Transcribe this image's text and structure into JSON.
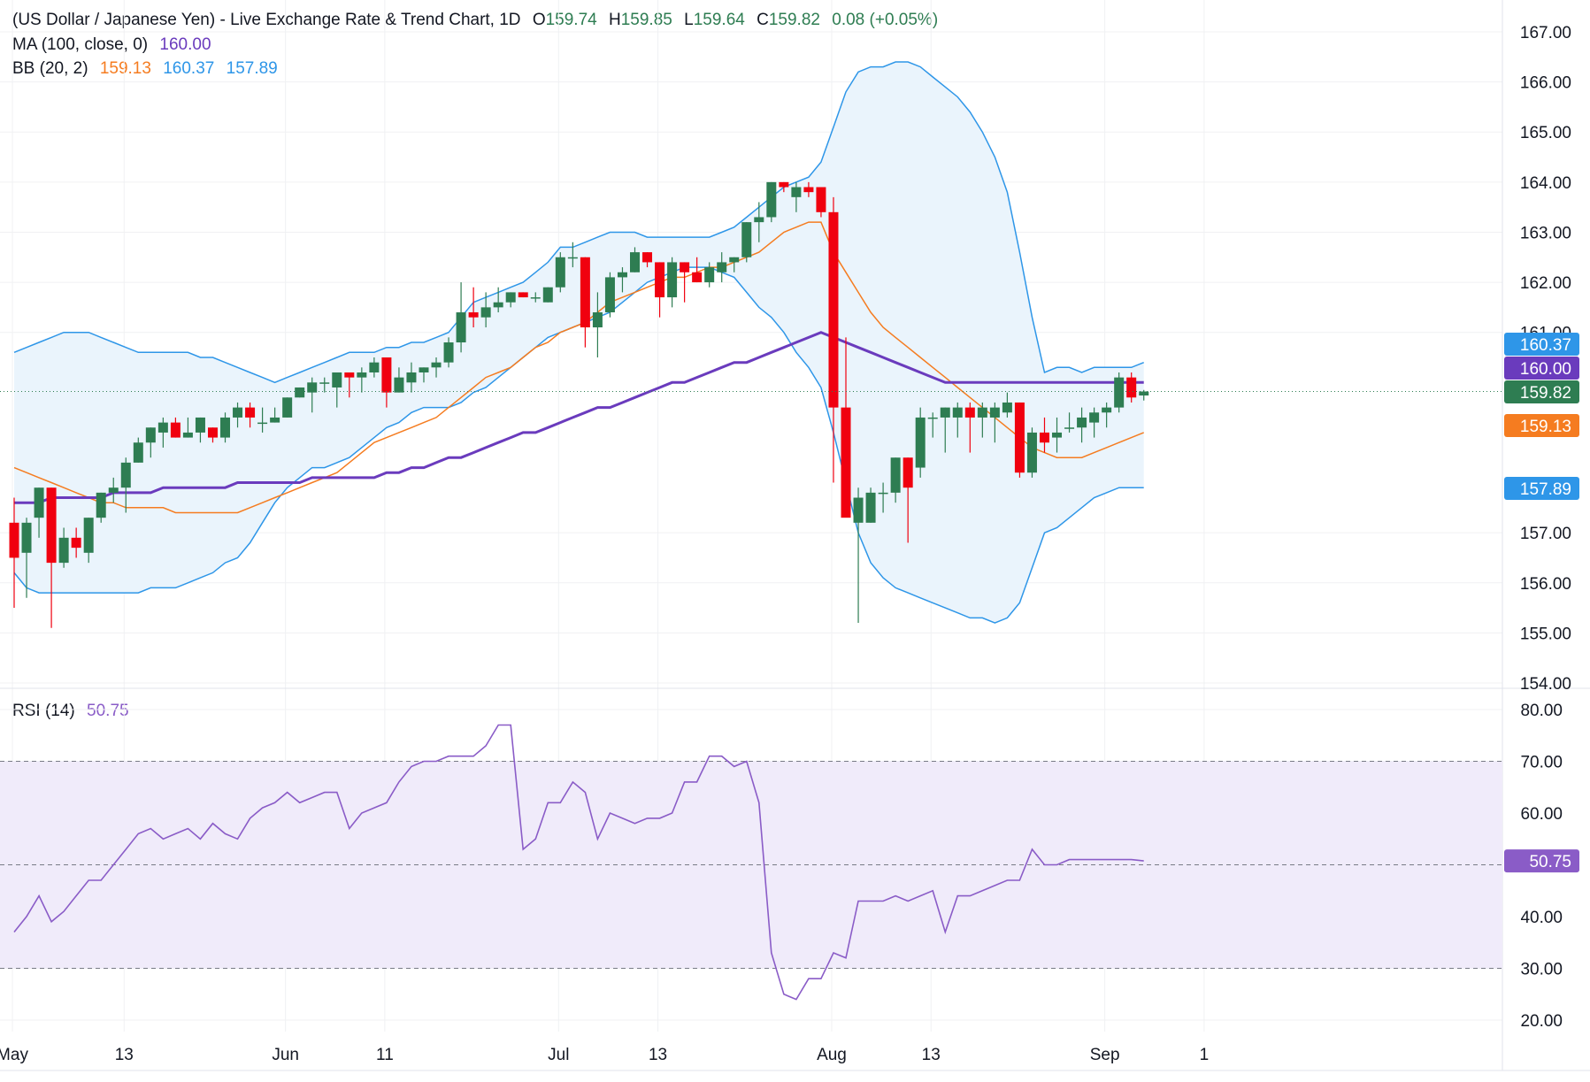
{
  "header": {
    "title": "(US Dollar / Japanese Yen) - Live Exchange Rate & Trend Chart, 1D",
    "open_label": "O",
    "open": "159.74",
    "high_label": "H",
    "high": "159.85",
    "low_label": "L",
    "low": "159.64",
    "close_label": "C",
    "close": "159.82",
    "change": "0.08 (+0.05%)"
  },
  "ma_legend": {
    "label": "MA (100, close, 0)",
    "value": "160.00"
  },
  "bb_legend": {
    "label": "BB (20, 2)",
    "basis": "159.13",
    "upper": "160.37",
    "lower": "157.89"
  },
  "rsi_legend": {
    "label": "RSI (14)",
    "value": "50.75"
  },
  "colors": {
    "up": "#2e7d52",
    "down": "#f0000f",
    "ma": "#6a3bbd",
    "bb_basis": "#f57c20",
    "bb_band": "#2e96e8",
    "bb_fill": "#eaf4fc",
    "rsi_line": "#8a5cc7",
    "rsi_fill": "#f0ebfa",
    "grid": "#f0f1f3",
    "text": "#131722"
  },
  "chart_data": [
    {
      "type": "candlestick",
      "symbol": "USD/JPY",
      "interval": "1D",
      "price_ticks": [
        "167.00",
        "166.00",
        "165.00",
        "164.00",
        "163.00",
        "162.00",
        "161.00",
        "157.00",
        "156.00",
        "155.00",
        "154.00"
      ],
      "ylim": [
        154.0,
        167.0
      ],
      "x_labels": [
        "May",
        "13",
        "Jun",
        "11",
        "Jul",
        "13",
        "Aug",
        "13",
        "Sep",
        "1"
      ],
      "x_label_index": [
        0,
        9,
        22,
        30,
        44,
        52,
        66,
        74,
        88,
        96
      ],
      "candles": [
        [
          157.2,
          157.7,
          155.5,
          156.5
        ],
        [
          156.6,
          157.3,
          155.7,
          157.2
        ],
        [
          157.3,
          157.9,
          156.9,
          157.9
        ],
        [
          157.9,
          157.9,
          155.1,
          156.4
        ],
        [
          156.4,
          157.1,
          156.3,
          156.9
        ],
        [
          156.9,
          157.1,
          156.5,
          156.7
        ],
        [
          156.6,
          157.3,
          156.4,
          157.3
        ],
        [
          157.3,
          157.8,
          157.2,
          157.8
        ],
        [
          157.8,
          158.1,
          157.6,
          157.9
        ],
        [
          157.9,
          158.5,
          157.4,
          158.4
        ],
        [
          158.4,
          158.9,
          158.4,
          158.8
        ],
        [
          158.8,
          159.1,
          158.5,
          159.1
        ],
        [
          159.0,
          159.3,
          158.7,
          159.2
        ],
        [
          159.2,
          159.3,
          158.9,
          158.9
        ],
        [
          158.9,
          159.3,
          158.9,
          159.0
        ],
        [
          159.0,
          159.3,
          158.8,
          159.3
        ],
        [
          159.1,
          159.1,
          158.8,
          158.9
        ],
        [
          158.9,
          159.4,
          158.8,
          159.3
        ],
        [
          159.3,
          159.6,
          159.1,
          159.5
        ],
        [
          159.5,
          159.6,
          159.1,
          159.3
        ],
        [
          159.2,
          159.5,
          159.0,
          159.2
        ],
        [
          159.2,
          159.5,
          159.2,
          159.3
        ],
        [
          159.3,
          159.7,
          159.3,
          159.7
        ],
        [
          159.7,
          159.9,
          159.7,
          159.9
        ],
        [
          159.8,
          160.1,
          159.4,
          160.0
        ],
        [
          160.0,
          160.1,
          159.8,
          160.0
        ],
        [
          159.9,
          160.2,
          159.5,
          160.2
        ],
        [
          160.2,
          160.2,
          159.7,
          160.1
        ],
        [
          160.1,
          160.3,
          159.8,
          160.2
        ],
        [
          160.2,
          160.5,
          160.1,
          160.4
        ],
        [
          160.5,
          160.5,
          159.5,
          159.8
        ],
        [
          159.8,
          160.3,
          159.8,
          160.1
        ],
        [
          160.0,
          160.4,
          159.8,
          160.2
        ],
        [
          160.2,
          160.3,
          160.0,
          160.3
        ],
        [
          160.3,
          160.5,
          160.1,
          160.4
        ],
        [
          160.4,
          160.9,
          160.3,
          160.8
        ],
        [
          160.8,
          162.0,
          160.6,
          161.4
        ],
        [
          161.4,
          161.9,
          161.1,
          161.3
        ],
        [
          161.3,
          161.8,
          161.1,
          161.5
        ],
        [
          161.5,
          161.9,
          161.4,
          161.6
        ],
        [
          161.6,
          161.8,
          161.5,
          161.8
        ],
        [
          161.8,
          161.8,
          161.7,
          161.7
        ],
        [
          161.7,
          161.8,
          161.6,
          161.7
        ],
        [
          161.6,
          161.9,
          161.6,
          161.9
        ],
        [
          161.9,
          162.6,
          161.8,
          162.5
        ],
        [
          162.5,
          162.8,
          162.3,
          162.5
        ],
        [
          162.5,
          162.5,
          160.7,
          161.1
        ],
        [
          161.1,
          161.8,
          160.5,
          161.4
        ],
        [
          161.4,
          162.2,
          161.3,
          162.1
        ],
        [
          162.1,
          162.3,
          161.8,
          162.2
        ],
        [
          162.2,
          162.7,
          162.2,
          162.6
        ],
        [
          162.6,
          162.6,
          162.3,
          162.4
        ],
        [
          162.4,
          162.4,
          161.3,
          161.7
        ],
        [
          161.7,
          162.5,
          161.5,
          162.4
        ],
        [
          162.4,
          162.4,
          161.6,
          162.2
        ],
        [
          162.2,
          162.5,
          162.0,
          162.0
        ],
        [
          162.0,
          162.4,
          161.9,
          162.3
        ],
        [
          162.2,
          162.6,
          162.0,
          162.4
        ],
        [
          162.4,
          162.5,
          162.2,
          162.5
        ],
        [
          162.5,
          163.2,
          162.4,
          163.2
        ],
        [
          163.2,
          163.6,
          162.8,
          163.3
        ],
        [
          163.3,
          164.0,
          163.2,
          164.0
        ],
        [
          164.0,
          164.0,
          163.8,
          163.9
        ],
        [
          163.7,
          164.0,
          163.4,
          163.9
        ],
        [
          163.9,
          164.0,
          163.7,
          163.8
        ],
        [
          163.9,
          163.9,
          163.3,
          163.4
        ],
        [
          163.4,
          163.7,
          158.0,
          159.5
        ],
        [
          159.5,
          160.9,
          157.4,
          157.3
        ],
        [
          157.2,
          157.9,
          155.2,
          157.7
        ],
        [
          157.2,
          157.9,
          157.2,
          157.8
        ],
        [
          157.8,
          158.0,
          157.4,
          157.8
        ],
        [
          157.8,
          158.5,
          157.6,
          158.5
        ],
        [
          158.5,
          158.5,
          156.8,
          157.9
        ],
        [
          158.3,
          159.5,
          158.1,
          159.3
        ],
        [
          159.3,
          159.4,
          158.9,
          159.3
        ],
        [
          159.3,
          159.5,
          158.6,
          159.5
        ],
        [
          159.3,
          159.6,
          158.9,
          159.5
        ],
        [
          159.5,
          159.6,
          158.6,
          159.3
        ],
        [
          159.3,
          159.6,
          158.9,
          159.5
        ],
        [
          159.3,
          159.6,
          158.8,
          159.5
        ],
        [
          159.4,
          159.8,
          159.3,
          159.6
        ],
        [
          159.6,
          159.6,
          158.1,
          158.2
        ],
        [
          158.2,
          159.1,
          158.1,
          159.0
        ],
        [
          159.0,
          159.3,
          158.6,
          158.8
        ],
        [
          158.9,
          159.3,
          158.6,
          159.0
        ],
        [
          159.1,
          159.4,
          159.0,
          159.1
        ],
        [
          159.1,
          159.5,
          158.8,
          159.3
        ],
        [
          159.2,
          159.5,
          158.9,
          159.4
        ],
        [
          159.4,
          159.6,
          159.1,
          159.5
        ],
        [
          159.5,
          160.2,
          159.4,
          160.1
        ],
        [
          160.1,
          160.2,
          159.6,
          159.7
        ],
        [
          159.74,
          159.85,
          159.64,
          159.82
        ]
      ],
      "ma100": [
        157.6,
        157.6,
        157.6,
        157.7,
        157.7,
        157.7,
        157.7,
        157.7,
        157.8,
        157.8,
        157.8,
        157.8,
        157.9,
        157.9,
        157.9,
        157.9,
        157.9,
        157.9,
        158.0,
        158.0,
        158.0,
        158.0,
        158.0,
        158.0,
        158.1,
        158.1,
        158.1,
        158.1,
        158.1,
        158.1,
        158.2,
        158.2,
        158.3,
        158.3,
        158.4,
        158.5,
        158.5,
        158.6,
        158.7,
        158.8,
        158.9,
        159.0,
        159.0,
        159.1,
        159.2,
        159.3,
        159.4,
        159.5,
        159.5,
        159.6,
        159.7,
        159.8,
        159.9,
        160.0,
        160.0,
        160.1,
        160.2,
        160.3,
        160.4,
        160.4,
        160.5,
        160.6,
        160.7,
        160.8,
        160.9,
        161.0,
        160.9,
        160.8,
        160.7,
        160.6,
        160.5,
        160.4,
        160.3,
        160.2,
        160.1,
        160.0,
        160.0,
        160.0,
        160.0,
        160.0,
        160.0,
        160.0,
        160.0,
        160.0,
        160.0,
        160.0,
        160.0,
        160.0,
        160.0,
        160.0,
        160.0,
        160.0
      ],
      "bb_basis": [
        158.3,
        158.2,
        158.1,
        158.0,
        157.9,
        157.8,
        157.7,
        157.6,
        157.6,
        157.5,
        157.5,
        157.5,
        157.5,
        157.4,
        157.4,
        157.4,
        157.4,
        157.4,
        157.4,
        157.5,
        157.6,
        157.7,
        157.8,
        157.9,
        158.0,
        158.1,
        158.2,
        158.4,
        158.6,
        158.8,
        158.9,
        159.0,
        159.1,
        159.2,
        159.3,
        159.5,
        159.7,
        159.9,
        160.1,
        160.2,
        160.3,
        160.5,
        160.7,
        160.8,
        161.0,
        161.1,
        161.2,
        161.4,
        161.6,
        161.7,
        161.8,
        161.9,
        162.0,
        162.1,
        162.1,
        162.2,
        162.3,
        162.3,
        162.4,
        162.5,
        162.6,
        162.8,
        163.0,
        163.1,
        163.2,
        163.2,
        162.6,
        162.2,
        161.8,
        161.4,
        161.1,
        160.9,
        160.7,
        160.5,
        160.3,
        160.1,
        159.9,
        159.7,
        159.5,
        159.3,
        159.1,
        158.9,
        158.7,
        158.6,
        158.5,
        158.5,
        158.5,
        158.6,
        158.7,
        158.8,
        158.9,
        159.0
      ],
      "bb_upper": [
        160.6,
        160.7,
        160.8,
        160.9,
        161.0,
        161.0,
        161.0,
        160.9,
        160.8,
        160.7,
        160.6,
        160.6,
        160.6,
        160.6,
        160.6,
        160.5,
        160.5,
        160.4,
        160.3,
        160.2,
        160.1,
        160.0,
        160.1,
        160.2,
        160.3,
        160.4,
        160.5,
        160.6,
        160.6,
        160.6,
        160.7,
        160.7,
        160.8,
        160.8,
        160.9,
        161.0,
        161.3,
        161.6,
        161.7,
        161.8,
        161.9,
        162.0,
        162.2,
        162.4,
        162.7,
        162.7,
        162.8,
        162.9,
        163.0,
        163.0,
        163.0,
        162.9,
        162.9,
        162.9,
        162.9,
        162.9,
        162.9,
        163.0,
        163.1,
        163.3,
        163.5,
        163.7,
        163.9,
        164.0,
        164.1,
        164.4,
        165.1,
        165.8,
        166.2,
        166.3,
        166.3,
        166.4,
        166.4,
        166.3,
        166.1,
        165.9,
        165.7,
        165.4,
        165.0,
        164.5,
        163.8,
        162.6,
        161.3,
        160.2,
        160.3,
        160.3,
        160.2,
        160.3,
        160.3,
        160.3,
        160.3,
        160.4
      ],
      "bb_lower": [
        156.2,
        155.9,
        155.8,
        155.8,
        155.8,
        155.8,
        155.8,
        155.8,
        155.8,
        155.8,
        155.8,
        155.9,
        155.9,
        155.9,
        156.0,
        156.1,
        156.2,
        156.4,
        156.5,
        156.8,
        157.2,
        157.6,
        157.9,
        158.1,
        158.3,
        158.3,
        158.4,
        158.5,
        158.7,
        158.9,
        159.1,
        159.2,
        159.4,
        159.5,
        159.5,
        159.5,
        159.6,
        159.8,
        159.9,
        160.1,
        160.3,
        160.5,
        160.7,
        160.9,
        161.0,
        161.1,
        161.2,
        161.3,
        161.4,
        161.6,
        161.8,
        162.0,
        162.1,
        162.2,
        162.3,
        162.3,
        162.3,
        162.2,
        162.1,
        161.8,
        161.5,
        161.3,
        161.0,
        160.6,
        160.3,
        159.9,
        159.0,
        158.0,
        157.0,
        156.4,
        156.1,
        155.9,
        155.8,
        155.7,
        155.6,
        155.5,
        155.4,
        155.3,
        155.3,
        155.2,
        155.3,
        155.6,
        156.3,
        157.0,
        157.1,
        157.3,
        157.5,
        157.7,
        157.8,
        157.9,
        157.9,
        157.9
      ],
      "last_price_tag": "159.82",
      "ma_tag": "160.00",
      "bb_upper_tag": "160.37",
      "bb_basis_tag": "159.13",
      "bb_lower_tag": "157.89"
    },
    {
      "type": "line",
      "name": "RSI (14)",
      "rsi_ticks": [
        "80.00",
        "70.00",
        "60.00",
        "50.00",
        "40.00",
        "30.00",
        "20.00"
      ],
      "ylim": [
        18.0,
        81.5
      ],
      "band": [
        30,
        70
      ],
      "midline": 50,
      "values": [
        37,
        40,
        44,
        39,
        41,
        44,
        47,
        47,
        50,
        53,
        56,
        57,
        55,
        56,
        57,
        55,
        58,
        56,
        55,
        59,
        61,
        62,
        64,
        62,
        63,
        64,
        64,
        57,
        60,
        61,
        62,
        66,
        69,
        70,
        70,
        71,
        71,
        71,
        73,
        77,
        77,
        53,
        55,
        62,
        62,
        66,
        64,
        55,
        60,
        59,
        58,
        59,
        59,
        60,
        66,
        66,
        71,
        71,
        69,
        70,
        62,
        33,
        25,
        24,
        28,
        28,
        33,
        32,
        43,
        43,
        43,
        44,
        43,
        44,
        45,
        37,
        44,
        44,
        45,
        46,
        47,
        47,
        53,
        50,
        50,
        51,
        51,
        51,
        51,
        51,
        51,
        50.75
      ],
      "last_tag": "50.75"
    }
  ]
}
